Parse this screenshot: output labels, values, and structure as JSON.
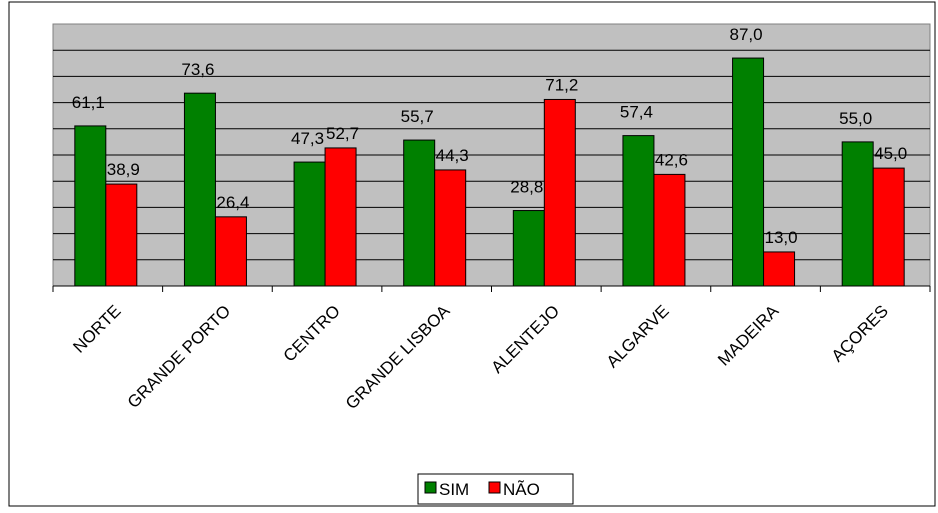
{
  "chart_data": {
    "type": "bar",
    "categories": [
      "NORTE",
      "GRANDE PORTO",
      "CENTRO",
      "GRANDE LISBOA",
      "ALENTEJO",
      "ALGARVE",
      "MADEIRA",
      "AÇORES"
    ],
    "series": [
      {
        "name": "SIM",
        "values": [
          61.1,
          73.6,
          47.3,
          55.7,
          28.8,
          57.4,
          87.0,
          55.0
        ],
        "labels": [
          "61,1",
          "73,6",
          "47,3",
          "55,7",
          "28,8",
          "57,4",
          "87,0",
          "55,0"
        ],
        "color": "#008000"
      },
      {
        "name": "NÃO",
        "values": [
          38.9,
          26.4,
          52.7,
          44.3,
          71.2,
          42.6,
          13.0,
          45.0
        ],
        "labels": [
          "38,9",
          "26,4",
          "52,7",
          "44,3",
          "71,2",
          "42,6",
          "13,0",
          "45,0"
        ],
        "color": "#ff0000"
      }
    ],
    "ylim": [
      0,
      100
    ],
    "grid": true,
    "plot_background": "#c0c0c0",
    "legend_position": "bottom-center",
    "title": "",
    "xlabel": "",
    "ylabel": ""
  }
}
